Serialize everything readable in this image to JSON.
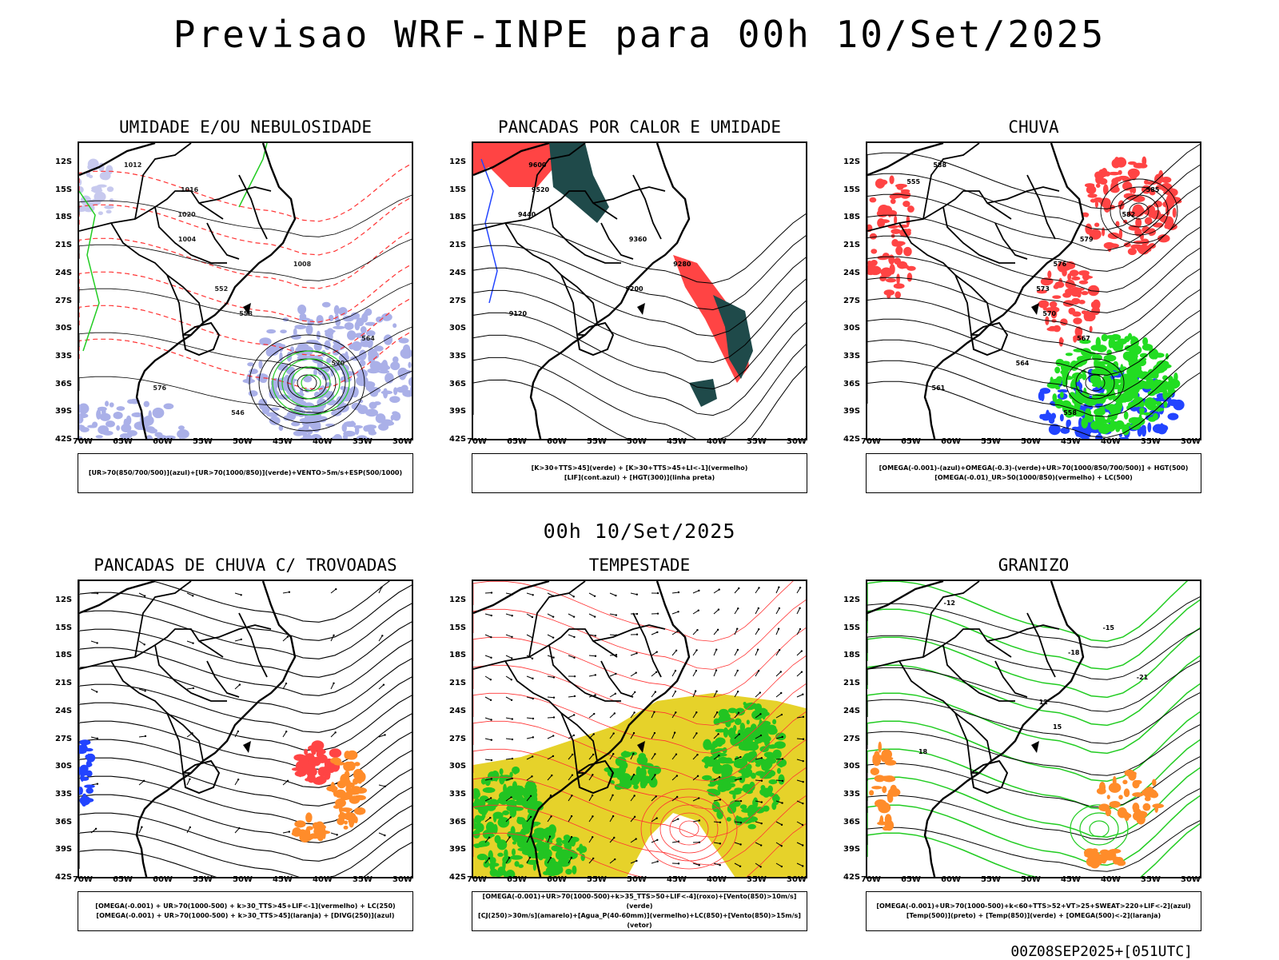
{
  "header": {
    "title": "Previsao WRF-INPE  para 00h 10/Set/2025"
  },
  "middle_date": "00h 10/Set/2025",
  "footer": "00Z08SEP2025+[051UTC]",
  "axes": {
    "lat_labels": [
      "12S",
      "15S",
      "18S",
      "21S",
      "24S",
      "27S",
      "30S",
      "33S",
      "36S",
      "39S",
      "42S"
    ],
    "lon_labels": [
      "70W",
      "65W",
      "60W",
      "55W",
      "50W",
      "45W",
      "40W",
      "35W",
      "30W"
    ]
  },
  "panels": [
    {
      "title": "UMIDADE E/OU NEBULOSIDADE",
      "legend": [
        "[UR>70(850/700/500)](azul)+[UR>70(1000/850)](verde)+VENTO>5m/s+ESP(500/1000)"
      ],
      "labels": [
        "1012",
        "1016",
        "1020",
        "1004",
        "1008",
        "552",
        "558",
        "564",
        "570",
        "576",
        "546"
      ]
    },
    {
      "title": "PANCADAS POR CALOR E UMIDADE",
      "legend": [
        "[K>30+TTS>45](verde) + [K>30+TTS>45+LI<-1](vermelho)",
        "[LIF](cont.azul) + [HGT(300)](linha preta)"
      ],
      "labels": [
        "9600",
        "9520",
        "9440",
        "9360",
        "9280",
        "9200",
        "9120"
      ]
    },
    {
      "title": "CHUVA",
      "legend": [
        "[OMEGA(-0.001)-(azul)+OMEGA(-0.3)-(verde)+UR>70(1000/850/700/500)] + HGT(500)",
        "[OMEGA(-0.01)_UR>50(1000/850)(vermelho) + LC(500)"
      ],
      "labels": [
        "588",
        "585",
        "582",
        "579",
        "576",
        "573",
        "570",
        "567",
        "564",
        "561",
        "558",
        "555"
      ]
    },
    {
      "title": "PANCADAS DE CHUVA C/ TROVOADAS",
      "legend": [
        "[OMEGA(-0.001) + UR>70(1000-500) + k>30_TTS>45+LIF<-1](vermelho) + LC(250)",
        "[OMEGA(-0.001) + UR>70(1000-500) + k>30_TTS>45](laranja) + [DIVG(250)](azul)"
      ],
      "labels": []
    },
    {
      "title": "TEMPESTADE",
      "legend": [
        "[OMEGA(-0.001)+UR>70(1000-500)+k>35_TTS>50+LIF<-4](roxo)+[Vento(850)>10m/s](verde)",
        "[CJ(250)>30m/s](amarelo)+[Agua_P(40-60mm)](vermelho)+LC(850)+[Vento(850)>15m/s](vetor)"
      ],
      "labels": []
    },
    {
      "title": "GRANIZO",
      "legend": [
        "[OMEGA(-0.001)+UR>70(1000-500)+k<60+TTS>52+VT>25+SWEAT>220+LIF<-2](azul)",
        "[Temp(500)](preto) + [Temp(850)](verde) + [OMEGA(500)<-2](laranja)"
      ],
      "labels": [
        "-12",
        "-15",
        "-18",
        "-21",
        "12",
        "15",
        "18"
      ]
    }
  ]
}
